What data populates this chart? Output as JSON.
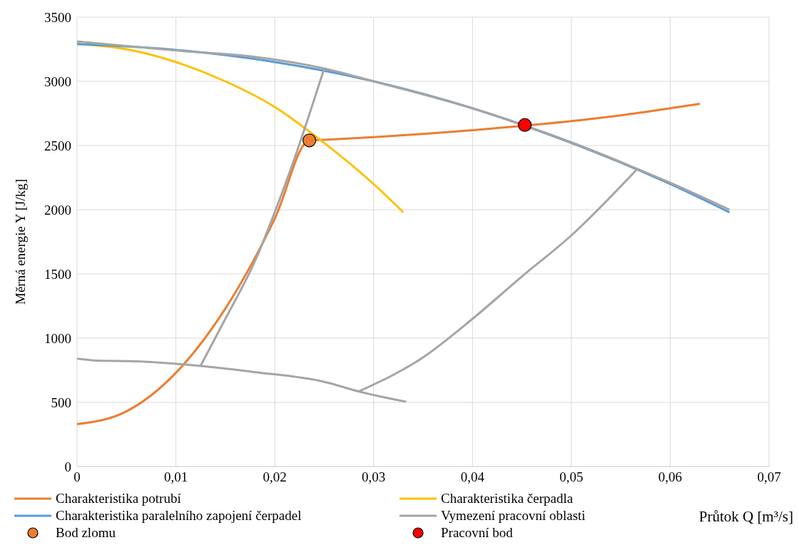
{
  "chart_data": {
    "type": "line",
    "xlabel": "Průtok Q [m³/s]",
    "ylabel": "Měrná energie Y [J/kg]",
    "xlim": [
      0,
      0.07
    ],
    "xticks": [
      {
        "value": 0,
        "label": "0"
      },
      {
        "value": 0.01,
        "label": "0,01"
      },
      {
        "value": 0.02,
        "label": "0,02"
      },
      {
        "value": 0.03,
        "label": "0,03"
      },
      {
        "value": 0.04,
        "label": "0,04"
      },
      {
        "value": 0.05,
        "label": "0,05"
      },
      {
        "value": 0.06,
        "label": "0,06"
      },
      {
        "value": 0.07,
        "label": "0,07"
      }
    ],
    "ylim": [
      0,
      3500
    ],
    "yticks": [
      0,
      500,
      1000,
      1500,
      2000,
      2500,
      3000,
      3500
    ],
    "grid": true,
    "legend": "bottom",
    "line_style": "solid",
    "series": [
      {
        "name": "Charakteristika potrubí",
        "color": "#ed7d31",
        "x": [
          0,
          0.005,
          0.01,
          0.015,
          0.02,
          0.0235,
          0.025,
          0.03,
          0.035,
          0.04,
          0.05,
          0.055,
          0.06,
          0.063
        ],
        "values": [
          330,
          430,
          730,
          1230,
          1930,
          2540,
          2545,
          2565,
          2590,
          2620,
          2690,
          2735,
          2790,
          2825
        ]
      },
      {
        "name": "Charakteristika čerpadla",
        "color": "#ffc000",
        "x": [
          0,
          0.005,
          0.01,
          0.015,
          0.02,
          0.025,
          0.03,
          0.033
        ],
        "values": [
          3290,
          3250,
          3150,
          3000,
          2800,
          2520,
          2200,
          1980
        ]
      },
      {
        "name": "Charakteristika paralelního zapojení čerpadel",
        "color": "#5b9bd5",
        "x": [
          0,
          0.01,
          0.02,
          0.03,
          0.04,
          0.05,
          0.06,
          0.066
        ],
        "values": [
          3290,
          3245,
          3150,
          3000,
          2790,
          2520,
          2200,
          1980
        ]
      },
      {
        "name": "Vymezení pracovní oblasti",
        "color": "#a5a5a5",
        "x": [
          0,
          0.01,
          0.018,
          0.025,
          0.03,
          0.04,
          0.05,
          0.056,
          0.06,
          0.066
        ],
        "values": [
          3310,
          3240,
          3190,
          3100,
          3000,
          2790,
          2525,
          2340,
          2210,
          2000
        ]
      },
      {
        "color": "#a5a5a5",
        "x": [
          0,
          0.002,
          0.006,
          0.01,
          0.018,
          0.025,
          0.0285,
          0.031,
          0.0333
        ],
        "values": [
          840,
          825,
          820,
          800,
          735,
          660,
          585,
          540,
          505
        ]
      },
      {
        "color": "#a5a5a5",
        "x": [
          0.0125,
          0.015,
          0.018,
          0.02,
          0.022,
          0.025
        ],
        "values": [
          785,
          1150,
          1600,
          1980,
          2400,
          3100
        ]
      },
      {
        "color": "#a5a5a5",
        "x": [
          0.0285,
          0.035,
          0.04,
          0.045,
          0.05,
          0.0567
        ],
        "values": [
          585,
          850,
          1150,
          1480,
          1800,
          2320
        ]
      },
      {
        "name": "Bod zlomu",
        "type": "scatter",
        "marker": "circle",
        "color": "#ed7d31",
        "x": [
          0.0235
        ],
        "values": [
          2540
        ]
      },
      {
        "name": "Pracovní bod",
        "type": "scatter",
        "marker": "circle",
        "color": "#ff0000",
        "x": [
          0.0453
        ],
        "values": [
          2660
        ]
      }
    ]
  }
}
